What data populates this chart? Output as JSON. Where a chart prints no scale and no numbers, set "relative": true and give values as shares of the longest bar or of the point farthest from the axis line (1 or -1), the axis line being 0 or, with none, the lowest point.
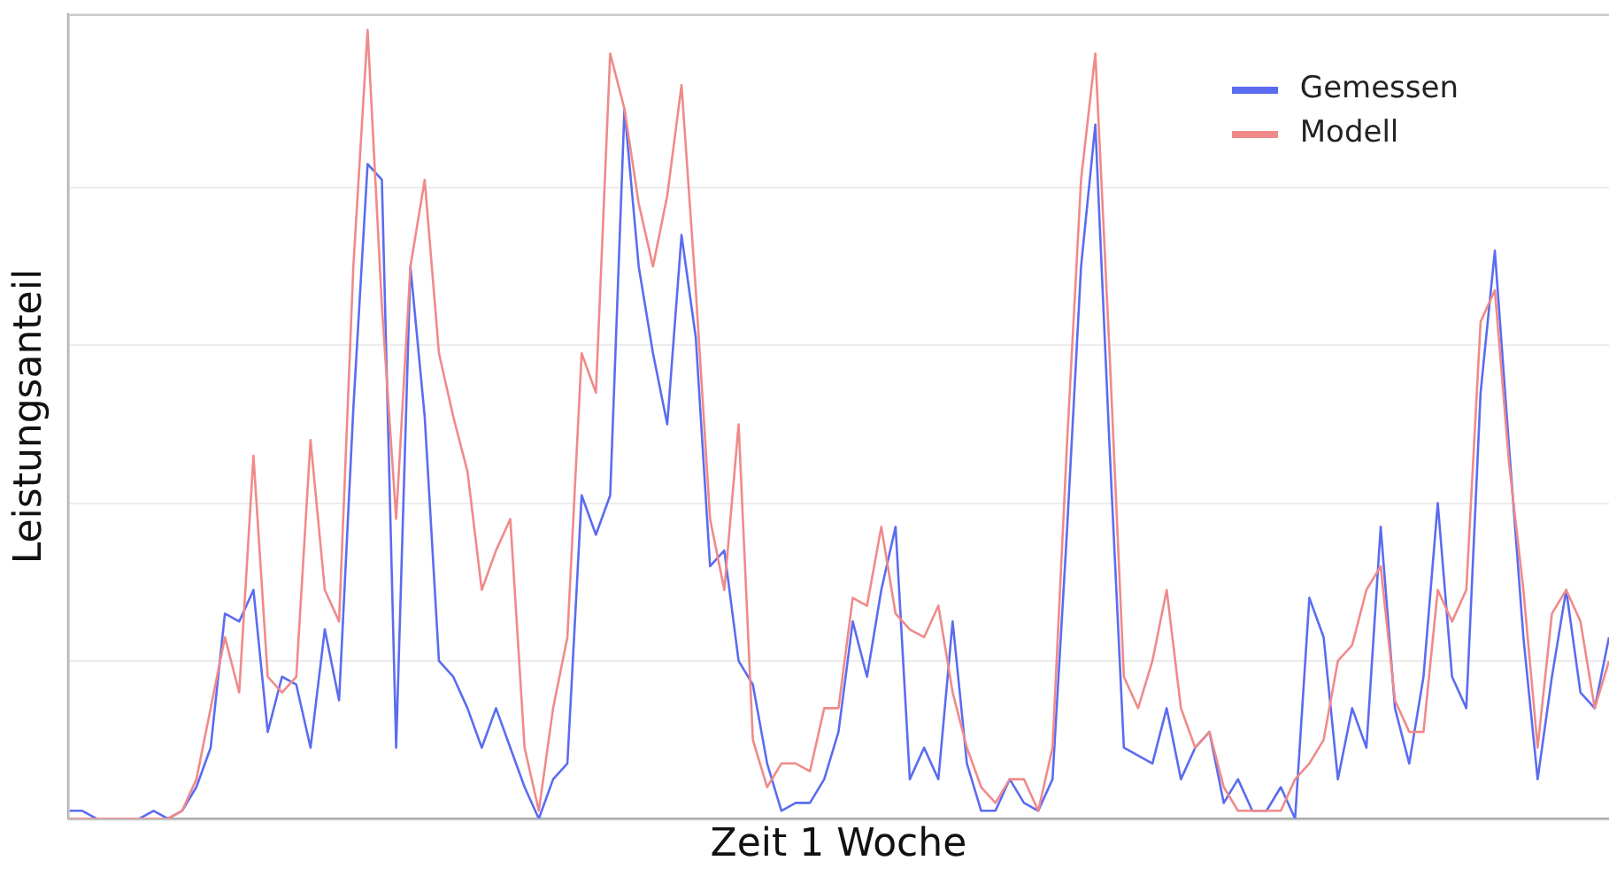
{
  "chart_data": {
    "type": "line",
    "xlabel": "Zeit 1 Woche",
    "ylabel": "Leistungsanteil",
    "relative": true,
    "grid": "y",
    "legend": "top right",
    "marker": "none",
    "tick_labels": false,
    "categories": [
      null,
      null,
      null,
      null,
      null,
      null,
      null,
      null,
      null,
      null,
      null,
      null,
      null,
      null,
      null,
      null,
      null,
      null,
      null,
      null,
      null,
      null,
      null,
      null,
      null,
      null,
      null,
      null,
      null,
      null,
      null,
      null,
      null,
      null,
      null,
      null,
      null,
      null,
      null,
      null,
      null,
      null,
      null,
      null,
      null,
      null,
      null,
      null,
      null,
      null,
      null,
      null,
      null,
      null,
      null,
      null,
      null,
      null,
      null,
      null,
      null,
      null,
      null,
      null,
      null,
      null,
      null,
      null,
      null,
      null,
      null,
      null,
      null,
      null,
      null,
      null,
      null,
      null,
      null,
      null,
      null,
      null,
      null,
      null,
      null,
      null,
      null,
      null,
      null,
      null,
      null,
      null,
      null,
      null,
      null,
      null,
      null,
      null,
      null,
      null,
      null,
      null,
      null,
      null,
      null,
      null,
      null,
      null,
      null
    ],
    "series": [
      {
        "name": "Modell",
        "color": "#f08a8a",
        "values": [
          0,
          0,
          0,
          0,
          0,
          0,
          0,
          0,
          0.01,
          0.05,
          0.14,
          0.23,
          0.16,
          0.46,
          0.18,
          0.16,
          0.18,
          0.48,
          0.29,
          0.25,
          0.7,
          1,
          0.65,
          0.38,
          0.7,
          0.81,
          0.59,
          0.51,
          0.44,
          0.29,
          0.34,
          0.38,
          0.09,
          0.01,
          0.14,
          0.23,
          0.59,
          0.54,
          0.97,
          0.9,
          0.78,
          0.7,
          0.79,
          0.93,
          0.67,
          0.38,
          0.29,
          0.5,
          0.1,
          0.04,
          0.07,
          0.07,
          0.06,
          0.14,
          0.14,
          0.28,
          0.27,
          0.37,
          0.26,
          0.24,
          0.23,
          0.27,
          0.16,
          0.09,
          0.04,
          0.02,
          0.05,
          0.05,
          0.01,
          0.09,
          0.47,
          0.81,
          0.97,
          0.59,
          0.18,
          0.14,
          0.2,
          0.29,
          0.14,
          0.09,
          0.11,
          0.04,
          0.01,
          0.01,
          0.01,
          0.01,
          0.05,
          0.07,
          0.1,
          0.2,
          0.22,
          0.29,
          0.32,
          0.15,
          0.11,
          0.11,
          0.29,
          0.25,
          0.29,
          0.63,
          0.67,
          0.45,
          0.29,
          0.09,
          0.26,
          0.29,
          0.25,
          0.14,
          0.2
        ]
      },
      {
        "name": "Gemessen",
        "color": "#5b6cf0",
        "values": [
          0.01,
          0.01,
          0,
          0,
          0,
          0,
          0.01,
          0,
          0.01,
          0.04,
          0.09,
          0.26,
          0.25,
          0.29,
          0.11,
          0.18,
          0.17,
          0.09,
          0.24,
          0.15,
          0.52,
          0.83,
          0.81,
          0.09,
          0.7,
          0.51,
          0.2,
          0.18,
          0.14,
          0.09,
          0.14,
          0.09,
          0.04,
          0,
          0.05,
          0.07,
          0.41,
          0.36,
          0.41,
          0.9,
          0.7,
          0.59,
          0.5,
          0.74,
          0.61,
          0.32,
          0.34,
          0.2,
          0.17,
          0.07,
          0.01,
          0.02,
          0.02,
          0.05,
          0.11,
          0.25,
          0.18,
          0.29,
          0.37,
          0.05,
          0.09,
          0.05,
          0.25,
          0.07,
          0.01,
          0.01,
          0.05,
          0.02,
          0.01,
          0.05,
          0.36,
          0.7,
          0.88,
          0.47,
          0.09,
          0.08,
          0.07,
          0.14,
          0.05,
          0.09,
          0.11,
          0.02,
          0.05,
          0.01,
          0.01,
          0.04,
          0,
          0.28,
          0.23,
          0.05,
          0.14,
          0.09,
          0.37,
          0.14,
          0.07,
          0.18,
          0.4,
          0.18,
          0.14,
          0.54,
          0.72,
          0.47,
          0.23,
          0.05,
          0.18,
          0.29,
          0.16,
          0.14,
          0.23
        ]
      }
    ]
  }
}
